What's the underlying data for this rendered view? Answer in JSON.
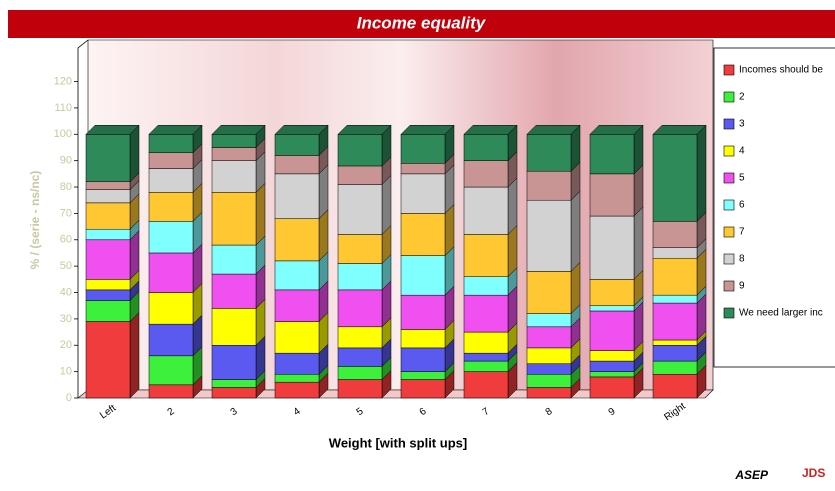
{
  "chart_data": {
    "type": "stacked-bar-3d",
    "title": "Income equality",
    "xlabel": "Weight [with split ups]",
    "ylabel": "% / (serie - ns/nc)",
    "categories": [
      "Left",
      "2",
      "3",
      "4",
      "5",
      "6",
      "7",
      "8",
      "9",
      "Right"
    ],
    "series": [
      {
        "name": "Incomes should be",
        "color": "#f03c3c",
        "values": [
          29,
          5,
          4,
          6,
          7,
          7,
          10,
          4,
          8,
          9
        ]
      },
      {
        "name": "2",
        "color": "#3cf03c",
        "values": [
          8,
          11,
          3,
          3,
          5,
          3,
          4,
          5,
          2,
          5
        ]
      },
      {
        "name": "3",
        "color": "#5a5af0",
        "values": [
          4,
          12,
          13,
          8,
          7,
          9,
          3,
          4,
          4,
          6
        ]
      },
      {
        "name": "4",
        "color": "#ffff00",
        "values": [
          4,
          12,
          14,
          12,
          8,
          7,
          8,
          6,
          4,
          2
        ]
      },
      {
        "name": "5",
        "color": "#f050f0",
        "values": [
          15,
          15,
          13,
          12,
          14,
          13,
          14,
          8,
          15,
          14
        ]
      },
      {
        "name": "6",
        "color": "#80ffff",
        "values": [
          4,
          12,
          11,
          11,
          10,
          15,
          7,
          5,
          2,
          3
        ]
      },
      {
        "name": "7",
        "color": "#ffc832",
        "values": [
          10,
          11,
          20,
          16,
          11,
          16,
          16,
          16,
          10,
          14
        ]
      },
      {
        "name": "8",
        "color": "#d2d2d2",
        "values": [
          5,
          9,
          12,
          17,
          19,
          15,
          18,
          27,
          24,
          4
        ]
      },
      {
        "name": "9",
        "color": "#c89494",
        "values": [
          3,
          6,
          5,
          7,
          7,
          4,
          10,
          11,
          16,
          10
        ]
      },
      {
        "name": "We need larger inc",
        "color": "#2f8a5a",
        "values": [
          18,
          7,
          5,
          8,
          12,
          11,
          10,
          14,
          15,
          33
        ]
      }
    ],
    "ylim": [
      0,
      135
    ],
    "yticks": [
      0,
      10,
      20,
      30,
      40,
      50,
      60,
      70,
      80,
      90,
      100,
      110,
      120
    ],
    "logo": [
      "ASEP",
      "JDS"
    ]
  }
}
